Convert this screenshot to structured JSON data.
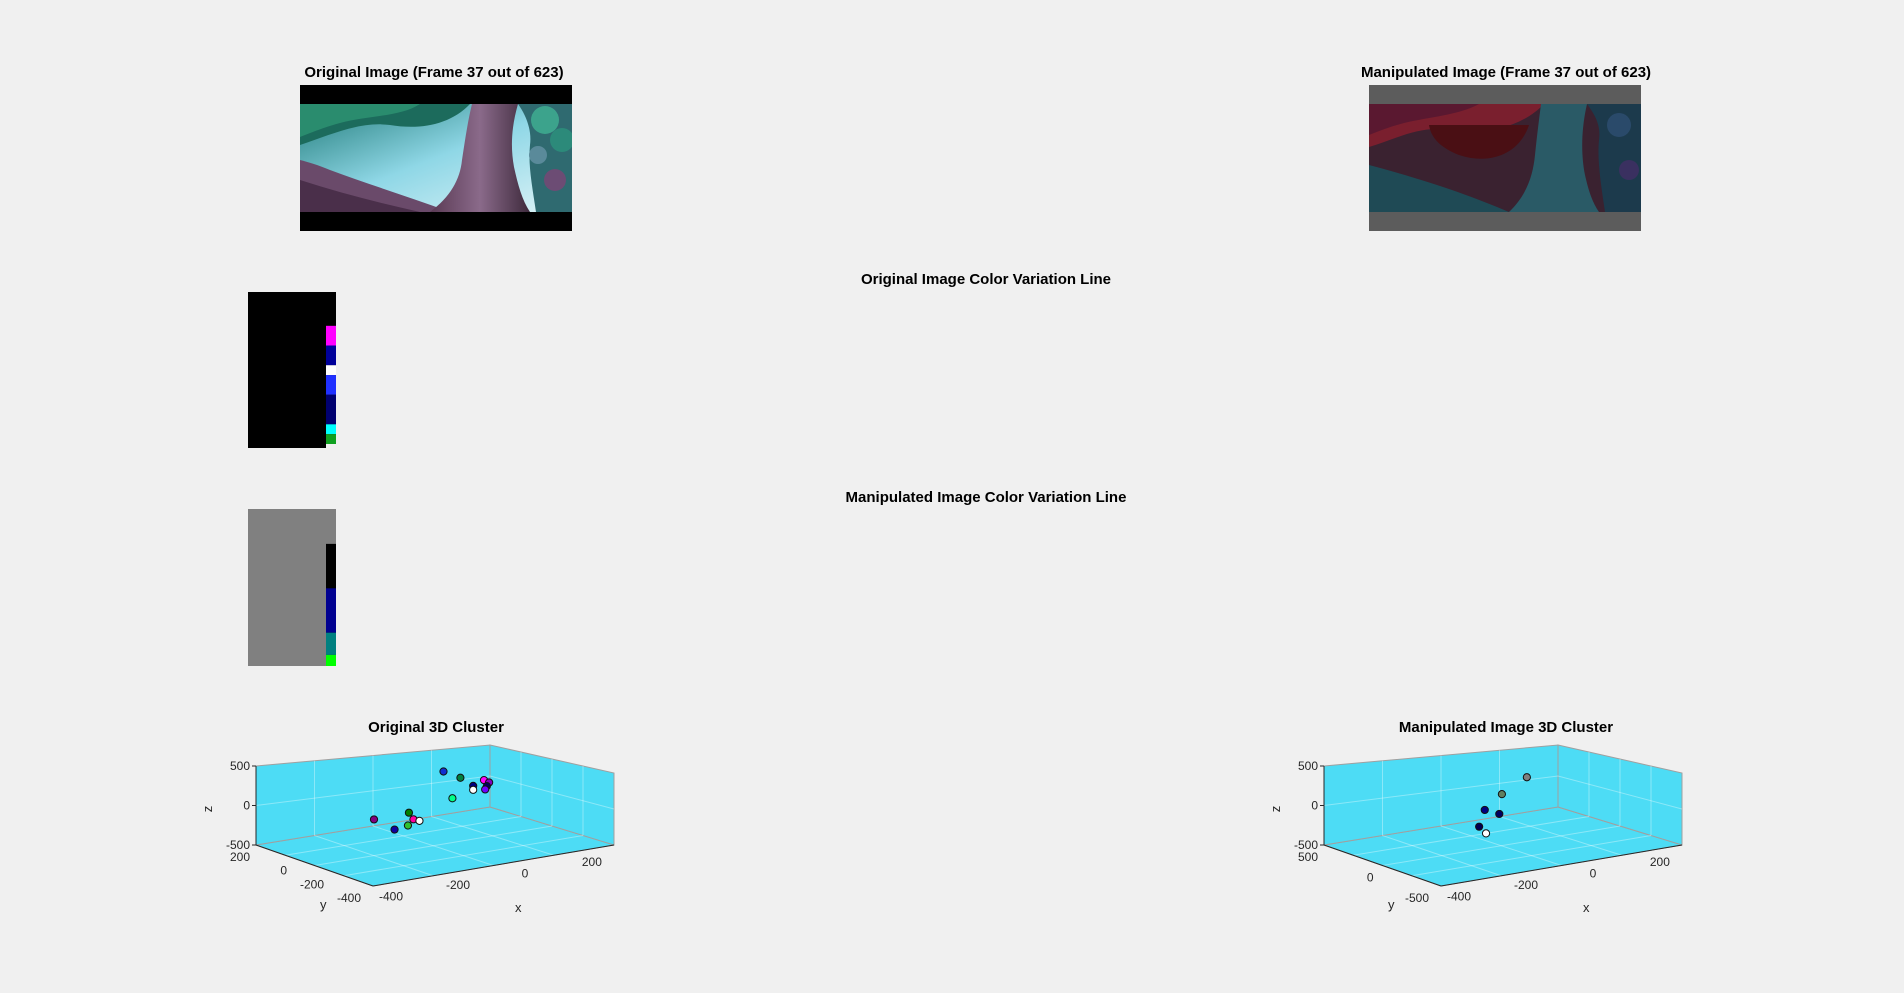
{
  "titles": {
    "original_image": "Original Image (Frame 37 out of 623)",
    "manipulated_image": "Manipulated Image (Frame 37 out of 623)",
    "original_line": "Original Image Color Variation Line",
    "manipulated_line": "Manipulated Image Color Variation Line",
    "original_cluster": "Original 3D Cluster",
    "manipulated_cluster": "Manipulated Image 3D Cluster"
  },
  "colors": {
    "figure_bg": "#f0f0f0",
    "axes_pane": "#4ddcf5",
    "letterbox_original": "#000000",
    "letterbox_manipulated": "#5c5c5c"
  },
  "color_variation": {
    "original": [
      {
        "color": "#000000",
        "share": 0.89
      },
      {
        "color": "#ff00ff",
        "share": 0.02
      },
      {
        "color": "#00009a",
        "share": 0.02
      },
      {
        "color": "#ffffff",
        "share": 0.01
      },
      {
        "color": "#2030ff",
        "share": 0.02
      },
      {
        "color": "#000070",
        "share": 0.03
      },
      {
        "color": "#00ffff",
        "share": 0.01
      },
      {
        "color": "#10a020",
        "share": 0.01
      }
    ],
    "manipulated": [
      {
        "color": "#808080",
        "share": 0.89
      },
      {
        "color": "#000000",
        "share": 0.04
      },
      {
        "color": "#000090",
        "share": 0.04
      },
      {
        "color": "#008080",
        "share": 0.02
      },
      {
        "color": "#00ff00",
        "share": 0.01
      }
    ]
  },
  "chart_data": [
    {
      "type": "scatter",
      "title": "Original 3D Cluster",
      "xlabel": "x",
      "ylabel": "y",
      "zlabel": "z",
      "xlim": [
        -450,
        250
      ],
      "ylim": [
        -450,
        250
      ],
      "zlim": [
        -500,
        500
      ],
      "xticks": [
        "-400",
        "-200",
        "0",
        "200"
      ],
      "yticks": [
        "200",
        "0",
        "-200",
        "-400"
      ],
      "zticks": [
        "500",
        "0",
        "-500"
      ],
      "grid": true,
      "points": [
        {
          "x": 80,
          "y": 220,
          "z": 60,
          "color": "#1030d0"
        },
        {
          "x": 100,
          "y": 160,
          "z": 10,
          "color": "#008040"
        },
        {
          "x": 120,
          "y": 60,
          "z": 40,
          "color": "#ff00ff"
        },
        {
          "x": 130,
          "y": 50,
          "z": 10,
          "color": "#8000c0"
        },
        {
          "x": 40,
          "y": -40,
          "z": 100,
          "color": "#000080"
        },
        {
          "x": 70,
          "y": -60,
          "z": 90,
          "color": "#000060"
        },
        {
          "x": 70,
          "y": -50,
          "z": 40,
          "color": "#7000ff"
        },
        {
          "x": 40,
          "y": -40,
          "z": 50,
          "color": "#ffffff"
        },
        {
          "x": -30,
          "y": -60,
          "z": 10,
          "color": "#00ff88"
        },
        {
          "x": -200,
          "y": -150,
          "z": 20,
          "color": "#008000"
        },
        {
          "x": -350,
          "y": -250,
          "z": 120,
          "color": "#800080"
        },
        {
          "x": -300,
          "y": -350,
          "z": 80,
          "color": "#30c030"
        },
        {
          "x": -300,
          "y": -270,
          "z": -30,
          "color": "#1000a0"
        },
        {
          "x": -250,
          "y": -280,
          "z": 70,
          "color": "#ff00a0"
        },
        {
          "x": -150,
          "y": -110,
          "z": -150,
          "color": "#ffffff"
        }
      ]
    },
    {
      "type": "scatter",
      "title": "Manipulated Image 3D Cluster",
      "xlabel": "x",
      "ylabel": "y",
      "zlabel": "z",
      "xlim": [
        -450,
        250
      ],
      "ylim": [
        -700,
        600
      ],
      "zlim": [
        -500,
        500
      ],
      "xticks": [
        "-400",
        "-200",
        "0",
        "200"
      ],
      "yticks": [
        "500",
        "0",
        "-500"
      ],
      "zticks": [
        "500",
        "0",
        "-500"
      ],
      "grid": true,
      "points": [
        {
          "x": 100,
          "y": 450,
          "z": 10,
          "color": "#808080"
        },
        {
          "x": -30,
          "y": 230,
          "z": -20,
          "color": "#608060"
        },
        {
          "x": -200,
          "y": -230,
          "z": 90,
          "color": "#000080"
        },
        {
          "x": -150,
          "y": -200,
          "z": -10,
          "color": "#000060"
        },
        {
          "x": -300,
          "y": -550,
          "z": 80,
          "color": "#000050"
        },
        {
          "x": -280,
          "y": -550,
          "z": -20,
          "color": "#ffffff"
        }
      ]
    }
  ]
}
